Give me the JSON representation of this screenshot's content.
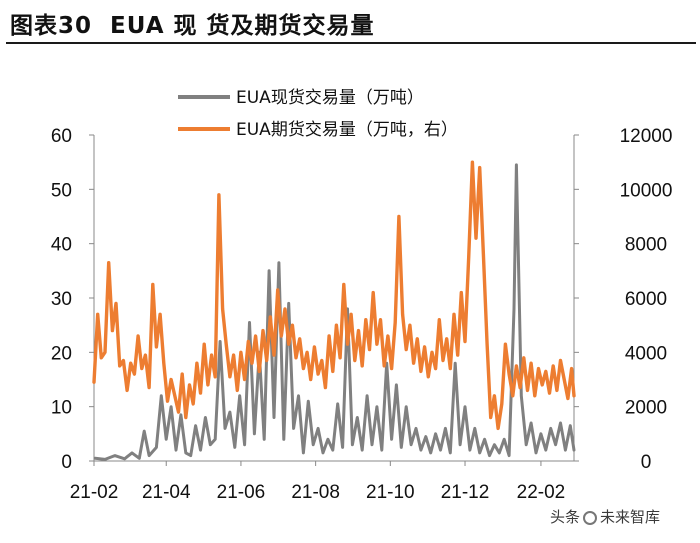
{
  "figure": {
    "label": "图表30",
    "title": "EUA 现 货及期货交易量"
  },
  "watermark": {
    "left": "头条",
    "right": "未来智库"
  },
  "chart_data": {
    "type": "line",
    "title": "图表30 EUA 现 货及期货交易量",
    "x_tick_labels": [
      "21-02",
      "21-04",
      "21-06",
      "21-08",
      "21-10",
      "21-12",
      "22-02"
    ],
    "x_tick_months": [
      "2021-02",
      "2021-04",
      "2021-06",
      "2021-08",
      "2021-10",
      "2021-12",
      "2022-02"
    ],
    "x_range": [
      "2021-02-01",
      "2022-02-28"
    ],
    "y_left": {
      "ticks": [
        0,
        10,
        20,
        30,
        40,
        50,
        60
      ],
      "range": [
        0,
        60
      ]
    },
    "y_right": {
      "ticks": [
        0,
        2000,
        4000,
        6000,
        8000,
        10000,
        12000
      ],
      "range": [
        0,
        12000
      ]
    },
    "grid": false,
    "legend_position": "top-center",
    "series": [
      {
        "name": "EUA现货交易量（万吨）",
        "axis": "left",
        "color": "#808080",
        "points": [
          [
            "2021-02-02",
            0.5
          ],
          [
            "2021-02-10",
            0.3
          ],
          [
            "2021-02-18",
            1.0
          ],
          [
            "2021-02-26",
            0.4
          ],
          [
            "2021-03-04",
            1.5
          ],
          [
            "2021-03-10",
            0.5
          ],
          [
            "2021-03-14",
            5.5
          ],
          [
            "2021-03-18",
            1.0
          ],
          [
            "2021-03-24",
            2.5
          ],
          [
            "2021-03-28",
            12.0
          ],
          [
            "2021-04-01",
            4.0
          ],
          [
            "2021-04-05",
            10.0
          ],
          [
            "2021-04-09",
            2.0
          ],
          [
            "2021-04-13",
            8.5
          ],
          [
            "2021-04-17",
            1.5
          ],
          [
            "2021-04-21",
            1.0
          ],
          [
            "2021-04-25",
            6.5
          ],
          [
            "2021-04-29",
            2.0
          ],
          [
            "2021-05-03",
            8.0
          ],
          [
            "2021-05-07",
            3.0
          ],
          [
            "2021-05-11",
            4.0
          ],
          [
            "2021-05-15",
            22.0
          ],
          [
            "2021-05-19",
            6.0
          ],
          [
            "2021-05-23",
            9.0
          ],
          [
            "2021-05-27",
            2.5
          ],
          [
            "2021-05-31",
            12.0
          ],
          [
            "2021-06-04",
            3.0
          ],
          [
            "2021-06-08",
            25.5
          ],
          [
            "2021-06-12",
            5.0
          ],
          [
            "2021-06-16",
            20.0
          ],
          [
            "2021-06-20",
            4.0
          ],
          [
            "2021-06-24",
            35.0
          ],
          [
            "2021-06-28",
            8.0
          ],
          [
            "2021-07-02",
            36.5
          ],
          [
            "2021-07-06",
            4.0
          ],
          [
            "2021-07-10",
            29.0
          ],
          [
            "2021-07-14",
            6.0
          ],
          [
            "2021-07-18",
            12.0
          ],
          [
            "2021-07-22",
            1.5
          ],
          [
            "2021-07-26",
            11.0
          ],
          [
            "2021-07-30",
            3.0
          ],
          [
            "2021-08-03",
            6.0
          ],
          [
            "2021-08-07",
            1.5
          ],
          [
            "2021-08-11",
            4.0
          ],
          [
            "2021-08-15",
            2.0
          ],
          [
            "2021-08-19",
            10.5
          ],
          [
            "2021-08-23",
            2.5
          ],
          [
            "2021-08-27",
            28.0
          ],
          [
            "2021-08-31",
            3.0
          ],
          [
            "2021-09-04",
            8.0
          ],
          [
            "2021-09-08",
            2.0
          ],
          [
            "2021-09-12",
            12.0
          ],
          [
            "2021-09-16",
            3.0
          ],
          [
            "2021-09-20",
            10.0
          ],
          [
            "2021-09-24",
            2.0
          ],
          [
            "2021-09-28",
            18.0
          ],
          [
            "2021-10-02",
            4.0
          ],
          [
            "2021-10-06",
            14.0
          ],
          [
            "2021-10-10",
            2.5
          ],
          [
            "2021-10-14",
            10.0
          ],
          [
            "2021-10-18",
            3.0
          ],
          [
            "2021-10-22",
            6.0
          ],
          [
            "2021-10-26",
            2.0
          ],
          [
            "2021-10-30",
            4.5
          ],
          [
            "2021-11-03",
            1.5
          ],
          [
            "2021-11-07",
            5.0
          ],
          [
            "2021-11-11",
            2.0
          ],
          [
            "2021-11-15",
            6.0
          ],
          [
            "2021-11-19",
            1.5
          ],
          [
            "2021-11-23",
            18.0
          ],
          [
            "2021-11-27",
            3.0
          ],
          [
            "2021-12-01",
            10.0
          ],
          [
            "2021-12-05",
            2.0
          ],
          [
            "2021-12-09",
            6.0
          ],
          [
            "2021-12-13",
            1.5
          ],
          [
            "2021-12-17",
            4.0
          ],
          [
            "2021-12-21",
            1.0
          ],
          [
            "2021-12-25",
            3.0
          ],
          [
            "2021-12-29",
            1.5
          ],
          [
            "2022-01-02",
            4.0
          ],
          [
            "2022-01-06",
            1.0
          ],
          [
            "2022-01-10",
            28.0
          ],
          [
            "2022-01-12",
            54.5
          ],
          [
            "2022-01-16",
            12.0
          ],
          [
            "2022-01-20",
            3.0
          ],
          [
            "2022-01-24",
            7.0
          ],
          [
            "2022-01-28",
            1.5
          ],
          [
            "2022-02-01",
            5.0
          ],
          [
            "2022-02-05",
            2.0
          ],
          [
            "2022-02-09",
            6.0
          ],
          [
            "2022-02-13",
            3.0
          ],
          [
            "2022-02-17",
            7.0
          ],
          [
            "2022-02-21",
            2.0
          ],
          [
            "2022-02-25",
            6.5
          ],
          [
            "2022-02-28",
            2.0
          ]
        ]
      },
      {
        "name": "EUA期货交易量（万吨，右）",
        "axis": "right",
        "color": "#ED7D31",
        "points": [
          [
            "2021-02-01",
            2900
          ],
          [
            "2021-02-04",
            5400
          ],
          [
            "2021-02-07",
            3800
          ],
          [
            "2021-02-10",
            4000
          ],
          [
            "2021-02-13",
            7300
          ],
          [
            "2021-02-16",
            4800
          ],
          [
            "2021-02-19",
            5800
          ],
          [
            "2021-02-22",
            3500
          ],
          [
            "2021-02-25",
            3700
          ],
          [
            "2021-02-28",
            2600
          ],
          [
            "2021-03-03",
            3600
          ],
          [
            "2021-03-06",
            3200
          ],
          [
            "2021-03-09",
            4600
          ],
          [
            "2021-03-12",
            3400
          ],
          [
            "2021-03-15",
            3900
          ],
          [
            "2021-03-18",
            2700
          ],
          [
            "2021-03-21",
            6500
          ],
          [
            "2021-03-24",
            4200
          ],
          [
            "2021-03-27",
            5400
          ],
          [
            "2021-03-30",
            3600
          ],
          [
            "2021-04-02",
            2200
          ],
          [
            "2021-04-05",
            3000
          ],
          [
            "2021-04-08",
            2400
          ],
          [
            "2021-04-11",
            1800
          ],
          [
            "2021-04-14",
            3200
          ],
          [
            "2021-04-17",
            1600
          ],
          [
            "2021-04-20",
            2800
          ],
          [
            "2021-04-23",
            2100
          ],
          [
            "2021-04-26",
            3600
          ],
          [
            "2021-04-29",
            2500
          ],
          [
            "2021-05-02",
            4300
          ],
          [
            "2021-05-05",
            2800
          ],
          [
            "2021-05-08",
            3900
          ],
          [
            "2021-05-11",
            3100
          ],
          [
            "2021-05-14",
            9800
          ],
          [
            "2021-05-17",
            5600
          ],
          [
            "2021-05-20",
            4300
          ],
          [
            "2021-05-23",
            3100
          ],
          [
            "2021-05-26",
            3900
          ],
          [
            "2021-05-29",
            2600
          ],
          [
            "2021-06-01",
            4000
          ],
          [
            "2021-06-04",
            3000
          ],
          [
            "2021-06-07",
            4400
          ],
          [
            "2021-06-10",
            3600
          ],
          [
            "2021-06-13",
            4600
          ],
          [
            "2021-06-16",
            3300
          ],
          [
            "2021-06-19",
            4800
          ],
          [
            "2021-06-22",
            3700
          ],
          [
            "2021-06-25",
            5300
          ],
          [
            "2021-06-28",
            3900
          ],
          [
            "2021-07-01",
            6300
          ],
          [
            "2021-07-04",
            4600
          ],
          [
            "2021-07-07",
            5600
          ],
          [
            "2021-07-10",
            4300
          ],
          [
            "2021-07-13",
            5000
          ],
          [
            "2021-07-16",
            3800
          ],
          [
            "2021-07-19",
            4500
          ],
          [
            "2021-07-22",
            3400
          ],
          [
            "2021-07-25",
            4000
          ],
          [
            "2021-07-28",
            3000
          ],
          [
            "2021-07-31",
            4200
          ],
          [
            "2021-08-03",
            3200
          ],
          [
            "2021-08-06",
            3700
          ],
          [
            "2021-08-09",
            2700
          ],
          [
            "2021-08-12",
            4600
          ],
          [
            "2021-08-15",
            3300
          ],
          [
            "2021-08-18",
            5000
          ],
          [
            "2021-08-21",
            3800
          ],
          [
            "2021-08-24",
            6500
          ],
          [
            "2021-08-27",
            4300
          ],
          [
            "2021-08-30",
            5400
          ],
          [
            "2021-09-02",
            3700
          ],
          [
            "2021-09-05",
            4800
          ],
          [
            "2021-09-08",
            3500
          ],
          [
            "2021-09-11",
            5200
          ],
          [
            "2021-09-14",
            4100
          ],
          [
            "2021-09-17",
            6200
          ],
          [
            "2021-09-20",
            4300
          ],
          [
            "2021-09-23",
            5200
          ],
          [
            "2021-09-26",
            3500
          ],
          [
            "2021-09-29",
            4600
          ],
          [
            "2021-10-02",
            3400
          ],
          [
            "2021-10-05",
            5100
          ],
          [
            "2021-10-08",
            9000
          ],
          [
            "2021-10-11",
            5400
          ],
          [
            "2021-10-14",
            4100
          ],
          [
            "2021-10-17",
            5000
          ],
          [
            "2021-10-20",
            3600
          ],
          [
            "2021-10-23",
            4500
          ],
          [
            "2021-10-26",
            3300
          ],
          [
            "2021-10-29",
            4200
          ],
          [
            "2021-11-01",
            3100
          ],
          [
            "2021-11-04",
            4000
          ],
          [
            "2021-11-07",
            3400
          ],
          [
            "2021-11-10",
            5200
          ],
          [
            "2021-11-13",
            3700
          ],
          [
            "2021-11-16",
            4500
          ],
          [
            "2021-11-19",
            3400
          ],
          [
            "2021-11-22",
            5400
          ],
          [
            "2021-11-25",
            3900
          ],
          [
            "2021-11-28",
            6200
          ],
          [
            "2021-12-01",
            4400
          ],
          [
            "2021-12-04",
            7500
          ],
          [
            "2021-12-07",
            11000
          ],
          [
            "2021-12-10",
            8200
          ],
          [
            "2021-12-13",
            10800
          ],
          [
            "2021-12-16",
            7600
          ],
          [
            "2021-12-19",
            4300
          ],
          [
            "2021-12-22",
            1600
          ],
          [
            "2021-12-25",
            2400
          ],
          [
            "2021-12-28",
            1200
          ],
          [
            "2021-12-31",
            2100
          ],
          [
            "2022-01-03",
            4300
          ],
          [
            "2022-01-06",
            3200
          ],
          [
            "2022-01-09",
            2400
          ],
          [
            "2022-01-12",
            3500
          ],
          [
            "2022-01-15",
            2700
          ],
          [
            "2022-01-18",
            3800
          ],
          [
            "2022-01-21",
            2600
          ],
          [
            "2022-01-24",
            3600
          ],
          [
            "2022-01-27",
            2400
          ],
          [
            "2022-01-30",
            3400
          ],
          [
            "2022-02-02",
            2800
          ],
          [
            "2022-02-05",
            3300
          ],
          [
            "2022-02-08",
            2500
          ],
          [
            "2022-02-11",
            3500
          ],
          [
            "2022-02-14",
            2600
          ],
          [
            "2022-02-17",
            3700
          ],
          [
            "2022-02-20",
            3000
          ],
          [
            "2022-02-23",
            2300
          ],
          [
            "2022-02-26",
            3400
          ],
          [
            "2022-02-28",
            2400
          ]
        ]
      }
    ]
  }
}
